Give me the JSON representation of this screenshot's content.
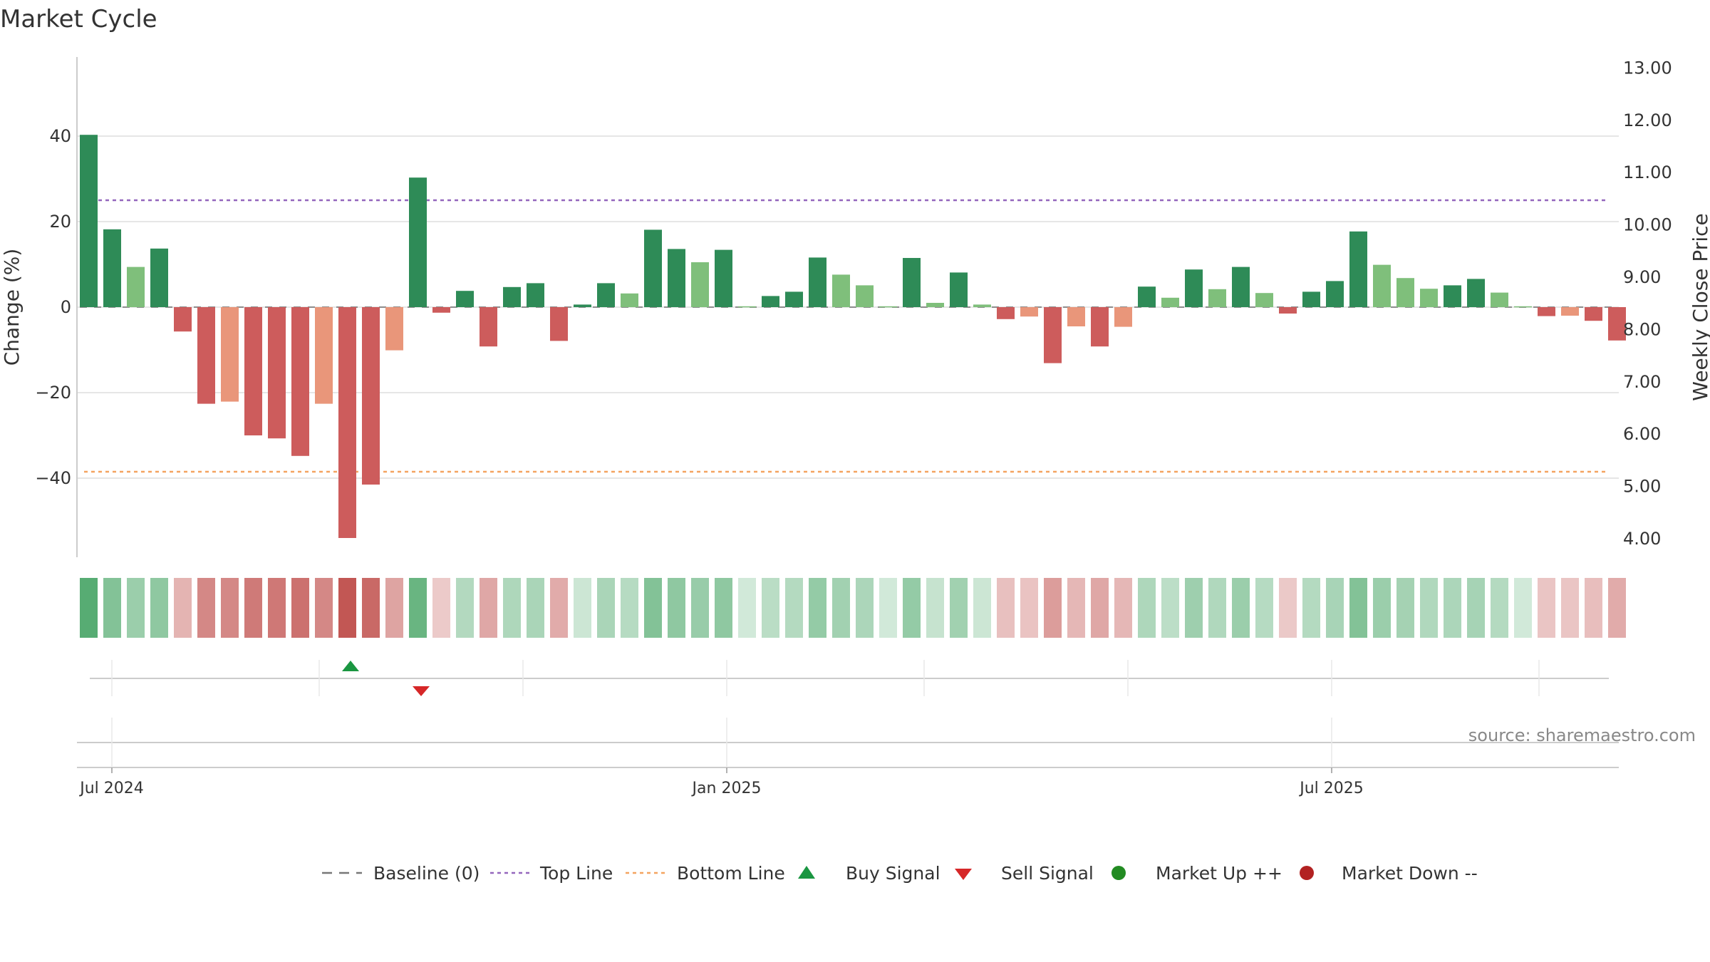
{
  "title": "Market Cycle",
  "source": "source: sharemaestro.com",
  "colors": {
    "strong_up": "#2e8b57",
    "mild_up": "#7fbf7b",
    "strong_down": "#cd5c5c",
    "mild_down": "#e9967a",
    "top_line": "#9467bd",
    "bottom_line": "#f4a460",
    "baseline": "#777777",
    "buy": "#1a9641",
    "sell": "#d62728",
    "market_up": "#228b22",
    "market_down": "#b22222",
    "grid": "#e6e6e6",
    "text": "#333333"
  },
  "chart_data": {
    "type": "bar",
    "title": "Market Cycle",
    "ylabel": "Change (%)",
    "y2label": "Weekly Close Price",
    "ylim": [
      -58,
      58
    ],
    "y2lim": [
      3.8,
      13.2
    ],
    "yticks": [
      {
        "value": 40,
        "label": "40"
      },
      {
        "value": 20,
        "label": "20"
      },
      {
        "value": 0,
        "label": "0"
      },
      {
        "value": -20,
        "label": "−20"
      },
      {
        "value": -40,
        "label": "−40"
      }
    ],
    "y2ticks": [
      "4.00",
      "5.00",
      "6.00",
      "7.00",
      "8.00",
      "9.00",
      "10.00",
      "11.00",
      "12.00",
      "13.00"
    ],
    "xticks": [
      {
        "label": "Jul 2024",
        "week": 1.5
      },
      {
        "label": "Jan 2025",
        "week": 27.8
      },
      {
        "label": "Jul 2025",
        "week": 53.6
      }
    ],
    "top_line": 25,
    "bottom_line": -38.5,
    "values": [
      40.3,
      18.2,
      9.4,
      13.7,
      -5.7,
      -22.6,
      -22.1,
      -30.0,
      -30.7,
      -34.8,
      -22.6,
      -54.0,
      -41.5,
      -10.1,
      30.3,
      -1.3,
      3.8,
      -9.2,
      4.7,
      5.6,
      -7.9,
      0.6,
      5.6,
      3.2,
      18.1,
      13.6,
      10.5,
      13.4,
      0.2,
      2.6,
      3.6,
      11.6,
      7.6,
      5.1,
      0.2,
      11.5,
      1.0,
      8.1,
      0.6,
      -2.8,
      -2.2,
      -13.1,
      -4.5,
      -9.2,
      -4.6,
      4.8,
      2.2,
      8.8,
      4.2,
      9.4,
      3.3,
      -1.5,
      3.6,
      6.1,
      17.7,
      9.9,
      6.8,
      4.3,
      5.1,
      6.6,
      3.4,
      0.2,
      -2.1,
      -2.0,
      -3.2,
      -7.8
    ],
    "buy_signal_weeks": [
      11.5
    ],
    "sell_signal_weeks": [
      14.5
    ],
    "legend": [
      {
        "label": "Baseline (0)",
        "marker": "dashed-line",
        "color": "#777777"
      },
      {
        "label": "Top Line",
        "marker": "dotted-line",
        "color": "#9467bd"
      },
      {
        "label": "Bottom Line",
        "marker": "dotted-line",
        "color": "#f4a460"
      },
      {
        "label": "Buy Signal",
        "marker": "triangle-up",
        "color": "#1a9641"
      },
      {
        "label": "Sell Signal",
        "marker": "triangle-down",
        "color": "#d62728"
      },
      {
        "label": "Market Up ++",
        "marker": "circle",
        "color": "#228b22"
      },
      {
        "label": "Market Down --",
        "marker": "circle",
        "color": "#b22222"
      }
    ],
    "legend_position": "bottom-center",
    "grid": true
  }
}
